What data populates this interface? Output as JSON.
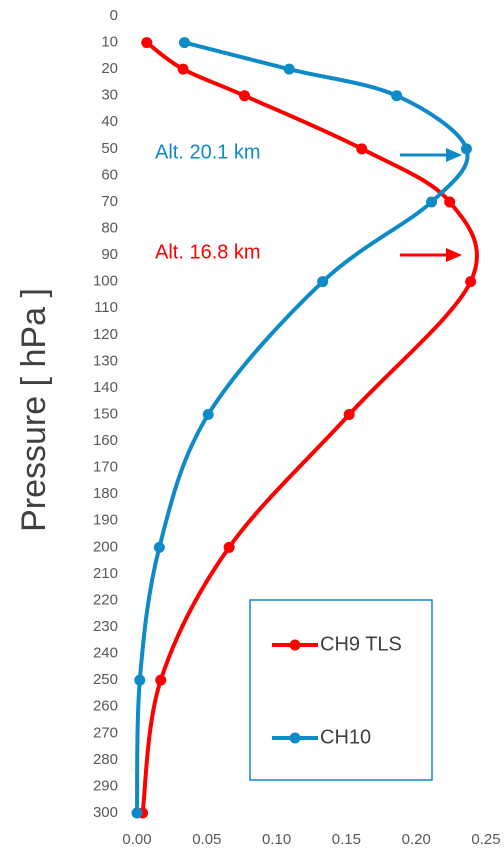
{
  "chart_data": {
    "type": "line",
    "ylabel": "Pressure [ hPa ]",
    "ylim": [
      0,
      300
    ],
    "y_inverted": true,
    "yticks": [
      0,
      10,
      20,
      30,
      40,
      50,
      60,
      70,
      80,
      90,
      100,
      110,
      120,
      130,
      140,
      150,
      160,
      170,
      180,
      190,
      200,
      210,
      220,
      230,
      240,
      250,
      260,
      270,
      280,
      290,
      300
    ],
    "xlim": [
      0,
      0.25
    ],
    "xticks": [
      {
        "value": 0,
        "label": "0.00"
      },
      {
        "value": 0.05,
        "label": "0.05"
      },
      {
        "value": 0.1,
        "label": "0.10"
      },
      {
        "value": 0.15,
        "label": "0.15"
      },
      {
        "value": 0.2,
        "label": "0.20"
      },
      {
        "value": 0.25,
        "label": "0.25"
      }
    ],
    "y": [
      10,
      20,
      30,
      50,
      70,
      100,
      150,
      200,
      250,
      300
    ],
    "series": [
      {
        "name": "CH9 TLS",
        "color": "#ff0000",
        "values": [
          0.007,
          0.033,
          0.077,
          0.161,
          0.224,
          0.239,
          0.152,
          0.066,
          0.017,
          0.004
        ]
      },
      {
        "name": "CH10",
        "color": "#0e8ac8",
        "values": [
          0.034,
          0.109,
          0.186,
          0.236,
          0.211,
          0.133,
          0.051,
          0.016,
          0.002,
          0
        ]
      }
    ],
    "annotations": [
      {
        "text": "Alt. 20.1 km",
        "color": "#0e8ac8"
      },
      {
        "text": "Alt. 16.8 km",
        "color": "#ff0000"
      }
    ]
  }
}
